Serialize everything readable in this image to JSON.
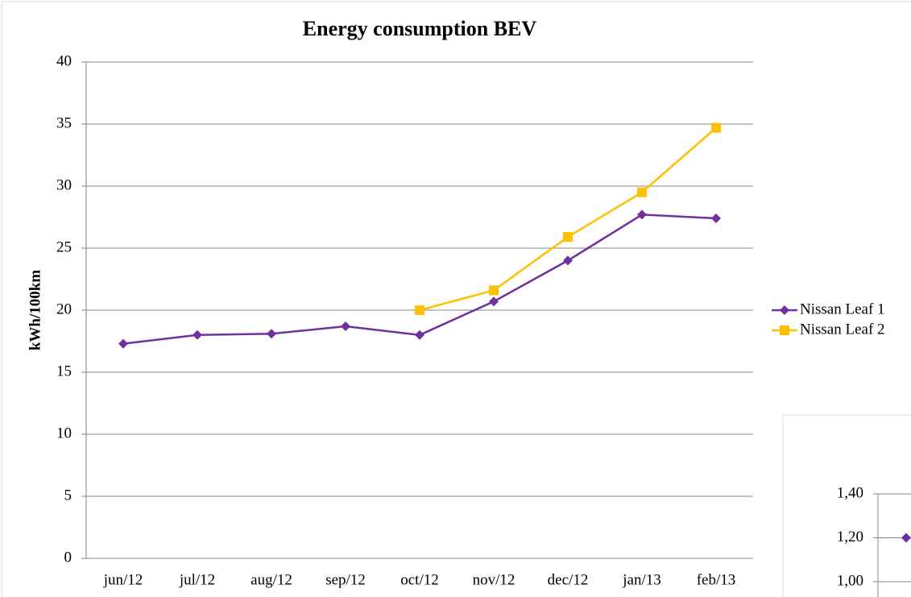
{
  "chart_data": [
    {
      "type": "line",
      "title": "Energy consumption BEV",
      "y_label": "kWh/100km",
      "categories": [
        "jun/12",
        "jul/12",
        "aug/12",
        "sep/12",
        "oct/12",
        "nov/12",
        "dec/12",
        "jan/13",
        "feb/13"
      ],
      "series": [
        {
          "name": "Nissan Leaf 1",
          "color": "#7030a0",
          "marker": "diamond",
          "values": [
            17.3,
            18.0,
            18.1,
            18.7,
            18.0,
            20.7,
            24.0,
            27.7,
            27.4
          ]
        },
        {
          "name": "Nissan Leaf 2",
          "color": "#ffc000",
          "marker": "square",
          "values": [
            null,
            null,
            null,
            null,
            20.0,
            21.6,
            25.9,
            29.5,
            34.7
          ]
        }
      ],
      "ylim": [
        0,
        40
      ],
      "yticks": [
        0,
        5,
        10,
        15,
        20,
        25,
        30,
        35,
        40
      ],
      "grid": true,
      "legend": "right"
    },
    {
      "type": "line",
      "series": [
        {
          "color": "#7030a0",
          "marker": "diamond",
          "values": [
            1.2
          ]
        }
      ],
      "ylim": [
        1.0,
        1.4
      ],
      "yticks": [
        {
          "value": 1.0,
          "label": "1,00"
        },
        {
          "value": 1.2,
          "label": "1,20"
        },
        {
          "value": 1.4,
          "label": "1,40"
        }
      ],
      "grid": true
    }
  ]
}
